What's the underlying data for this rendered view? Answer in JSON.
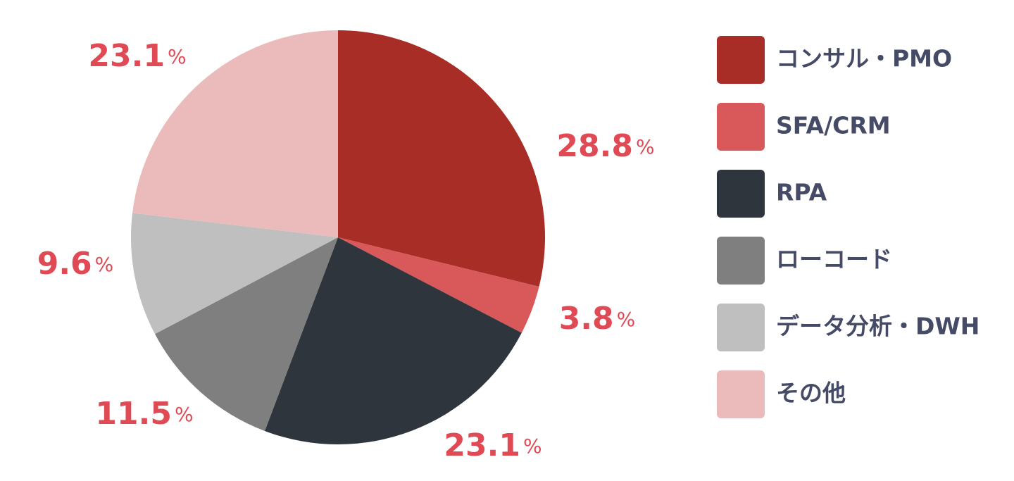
{
  "chart_data": {
    "type": "pie",
    "categories": [
      "コンサル・PMO",
      "SFA/CRM",
      "RPA",
      "ローコード",
      "データ分析・DWH",
      "その他"
    ],
    "values": [
      28.8,
      3.8,
      23.1,
      11.5,
      9.6,
      23.1
    ],
    "value_labels": [
      "28.8%",
      "3.8%",
      "23.1%",
      "11.5%",
      "9.6%",
      "23.1%"
    ],
    "colors": [
      "#a92d27",
      "#d9585a",
      "#2f353c",
      "#7f7f7f",
      "#bfbfbf",
      "#ebbbbb"
    ],
    "legend": "right"
  }
}
